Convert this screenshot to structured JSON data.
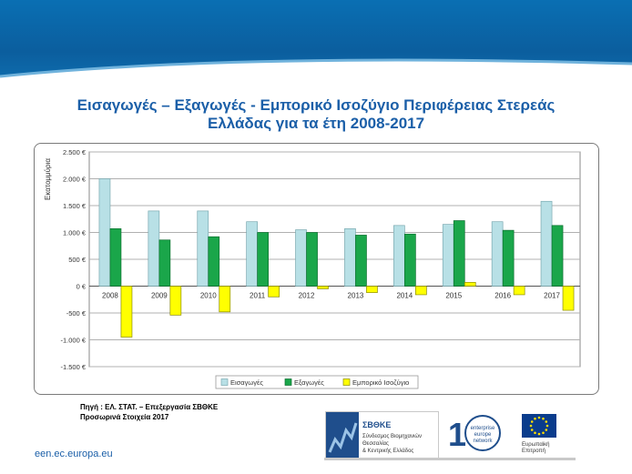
{
  "title": {
    "line1": "Εισαγωγές – Εξαγωγές - Εμπορικό Ισοζύγιο Περιφέρειας Στερεάς",
    "line2": "Ελλάδας για τα έτη 2008-2017"
  },
  "source": {
    "line1": "Πηγή : ΕΛ. ΣΤΑΤ. – Επεξεργασία ΣΒΘΚΕ",
    "line2": "Προσωρινά Στοιχεία  2017"
  },
  "footer": {
    "url": "een.ec.europa.eu"
  },
  "logos": {
    "sbthke_name": "ΣΒΘΚΕ",
    "sbthke_sub1": "Σύνδεσμος Βιομηχανιών",
    "sbthke_sub2": "Θεσσαλίας",
    "sbthke_sub3": "& Κεντρικής Ελλάδος",
    "een_line1": "enterprise",
    "een_line2": "europe",
    "een_line3": "network",
    "eu_label1": "Ευρωπαϊκή",
    "eu_label2": "Επιτροπή"
  },
  "colors": {
    "imports": "#b8e0e6",
    "exports": "#1aa64a",
    "balance": "#ffff00"
  },
  "chart_data": {
    "type": "bar",
    "title": "",
    "xlabel": "",
    "ylabel": "Εκατομμύρια",
    "categories": [
      "2008",
      "2009",
      "2010",
      "2011",
      "2012",
      "2013",
      "2014",
      "2015",
      "2016",
      "2017"
    ],
    "ylim": [
      -1500,
      2500
    ],
    "yticks": [
      2500,
      2000,
      1500,
      1000,
      500,
      0,
      -500,
      -1000,
      -1500
    ],
    "ytick_labels": [
      "2.500 €",
      "2.000 €",
      "1.500 €",
      "1.000 €",
      "500 €",
      "0 €",
      "-500 €",
      "-1.000 €",
      "-1.500 €"
    ],
    "grid": true,
    "legend_position": "bottom",
    "series": [
      {
        "name": "Εισαγωγές",
        "values": [
          2000,
          1400,
          1400,
          1200,
          1050,
          1070,
          1130,
          1150,
          1200,
          1580
        ]
      },
      {
        "name": "Εξαγωγές",
        "values": [
          1070,
          860,
          920,
          1000,
          1000,
          950,
          970,
          1220,
          1040,
          1130
        ]
      },
      {
        "name": "Εμπορικό Ισοζύγιο",
        "values": [
          -950,
          -540,
          -480,
          -200,
          -50,
          -120,
          -160,
          70,
          -160,
          -450
        ]
      }
    ]
  }
}
